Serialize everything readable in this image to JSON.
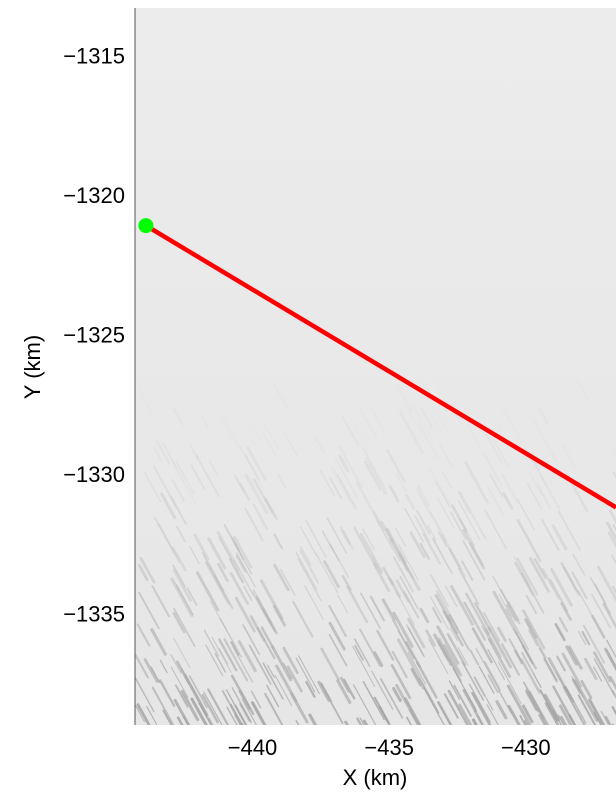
{
  "chart_data": {
    "type": "line",
    "title": "",
    "xlabel": "X (km)",
    "ylabel": "Y (km)",
    "xlim": [
      -444.3,
      -426.7
    ],
    "ylim": [
      -1339.0,
      -1313.3
    ],
    "xticks": [
      -440,
      -435,
      -430
    ],
    "xtick_labels": [
      "−440",
      "−435",
      "−430"
    ],
    "yticks": [
      -1315,
      -1320,
      -1325,
      -1330,
      -1335
    ],
    "ytick_labels": [
      "−1315",
      "−1320",
      "−1325",
      "−1330",
      "−1335"
    ],
    "grid": false,
    "background": "grayscale satellite image of ice surface with wave-like texture in lower portion",
    "series": [
      {
        "color": "#ff0000",
        "x": [
          -443.9,
          -426.7
        ],
        "y": [
          -1321.1,
          -1331.2
        ]
      }
    ],
    "markers": [
      {
        "color": "#00ff00",
        "x": -443.9,
        "y": -1321.1
      }
    ]
  }
}
